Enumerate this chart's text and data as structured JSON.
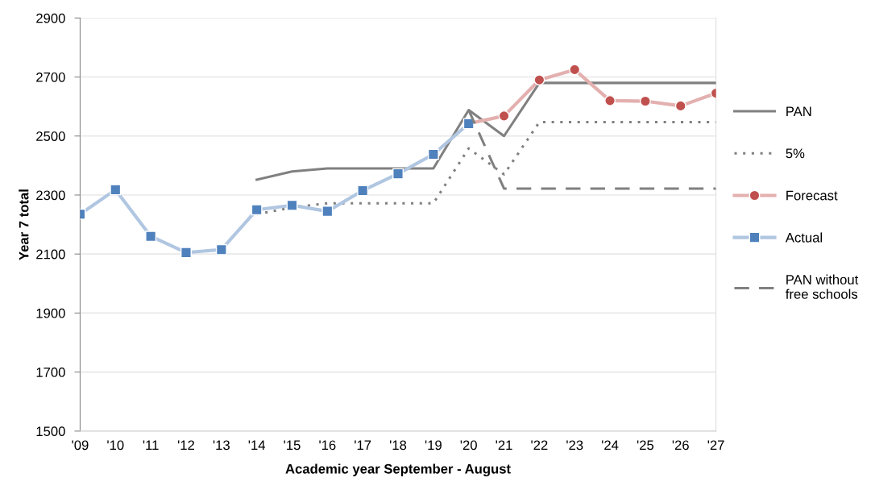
{
  "chart_data": {
    "type": "line",
    "ylabel": "Year 7 total",
    "xlabel": "Academic year September - August",
    "categories": [
      "'09",
      "'10",
      "'11",
      "'12",
      "'13",
      "'14",
      "'15",
      "'16",
      "'17",
      "'18",
      "'19",
      "'20",
      "'21",
      "'22",
      "'23",
      "'24",
      "'25",
      "'26",
      "'27"
    ],
    "ylim": [
      1500,
      2900
    ],
    "yticks": [
      1500,
      1700,
      1900,
      2100,
      2300,
      2500,
      2700,
      2900
    ],
    "grid": "y",
    "legend": "right",
    "series": [
      {
        "name": "PAN",
        "color": "#808080",
        "line_style": "solid",
        "marker": "none",
        "values": [
          null,
          null,
          null,
          null,
          null,
          2352,
          2380,
          2390,
          2390,
          2390,
          2390,
          2588,
          2500,
          2680,
          2680,
          2680,
          2680,
          2680,
          2680
        ]
      },
      {
        "name": "5%",
        "color": "#808080",
        "line_style": "dotted",
        "marker": "none",
        "values": [
          null,
          null,
          null,
          null,
          null,
          2235,
          2258,
          2272,
          2272,
          2272,
          2272,
          2458,
          2370,
          2547,
          2547,
          2547,
          2547,
          2547,
          2547
        ]
      },
      {
        "name": "Forecast",
        "color": "#c0504d",
        "line_style": "solid",
        "marker": "circle",
        "values": [
          null,
          null,
          null,
          null,
          null,
          null,
          null,
          null,
          null,
          null,
          null,
          2542,
          2568,
          2690,
          2725,
          2620,
          2618,
          2602,
          2645
        ]
      },
      {
        "name": "Actual",
        "color": "#4f81bd",
        "line_style": "solid",
        "marker": "square",
        "values": [
          2235,
          2318,
          2160,
          2105,
          2115,
          2250,
          2265,
          2245,
          2315,
          2372,
          2438,
          2542,
          null,
          null,
          null,
          null,
          null,
          null,
          null
        ]
      },
      {
        "name": "PAN without free schools",
        "color": "#808080",
        "line_style": "dashed",
        "marker": "none",
        "values": [
          null,
          null,
          null,
          null,
          null,
          null,
          null,
          null,
          null,
          null,
          null,
          2588,
          2322,
          2322,
          2322,
          2322,
          2322,
          2322,
          2322
        ]
      }
    ]
  }
}
